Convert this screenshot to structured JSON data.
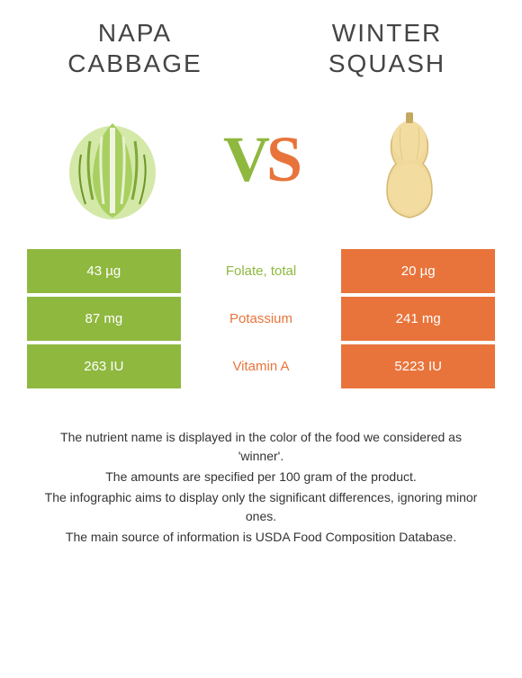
{
  "food_left": {
    "name_line1": "Napa",
    "name_line2": "cabbage",
    "color": "#8fb83f"
  },
  "food_right": {
    "name_line1": "Winter",
    "name_line2": "squash",
    "color": "#e8743b"
  },
  "vs": {
    "v": "V",
    "s": "S"
  },
  "nutrients": [
    {
      "name": "Folate, total",
      "left": "43 µg",
      "right": "20 µg",
      "winner": "left"
    },
    {
      "name": "Potassium",
      "left": "87 mg",
      "right": "241 mg",
      "winner": "right"
    },
    {
      "name": "Vitamin A",
      "left": "263 IU",
      "right": "5223 IU",
      "winner": "right"
    }
  ],
  "footer": {
    "line1": "The nutrient name is displayed in the color of the food we considered as 'winner'.",
    "line2": "The amounts are specified per 100 gram of the product.",
    "line3": "The infographic aims to display only the significant differences, ignoring minor ones.",
    "line4": "The main source of information is USDA Food Composition Database."
  },
  "styling": {
    "left_color": "#8fb83f",
    "right_color": "#e8743b",
    "background": "#ffffff",
    "title_fontsize": 28,
    "vs_fontsize": 72,
    "cell_fontsize": 15,
    "footer_fontsize": 14
  }
}
